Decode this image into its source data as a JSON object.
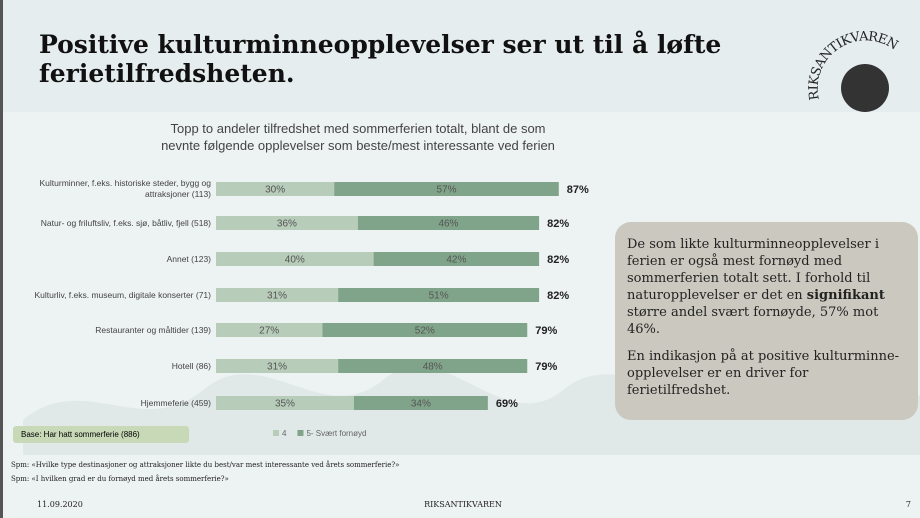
{
  "slide": {
    "title": "Positive kulturminneopplevelser ser ut til å løfte ferietilfredsheten.",
    "logo": "RIKSANTIKVAREN",
    "note": {
      "p1": [
        "De som likte kulturminneopplevelser i ferien er også mest fornøyd med sommerferien totalt sett. I forhold til naturopplevelser er det en ",
        "signifikant",
        " større andel svært fornøyde, 57% mot 46%."
      ],
      "p2": "En indikasjon på at positive kulturminne-opplevelser er en driver for ferietilfredshet."
    },
    "base": "Base: Har hatt sommerferie (886)",
    "questions": [
      "Spm: «Hvilke type destinasjoner og attraksjoner likte du best/var mest interessante ved årets sommerferie?»",
      "Spm: «I hvilken grad er du fornøyd med årets sommerferie?»"
    ],
    "date": "11.09.2020",
    "footer": "RIKSANTIKVAREN",
    "page": "7"
  },
  "chart_data": {
    "type": "stacked_bar_horizontal",
    "title": "Topp to andeler tilfredshet med sommerferien totalt, blant de som nevnte følgende opplevelser som beste/mest interessante ved ferien",
    "categories": [
      "Kulturminner, f.eks. historiske steder, bygg og attraksjoner (113)",
      "Natur- og friluftsliv, f.eks. sjø, båtliv, fjell (518)",
      "Annet (123)",
      "Kulturliv, f.eks. museum, digitale konserter (71)",
      "Restauranter og måltider (139)",
      "Hotell (86)",
      "Hjemmeferie (459)"
    ],
    "series": [
      {
        "name": "4",
        "color": "#b7ccb9",
        "values": [
          30,
          36,
          40,
          31,
          27,
          31,
          35
        ],
        "value_labels": [
          "30%",
          "36%",
          "40%",
          "31%",
          "27%",
          "31%",
          "35%"
        ]
      },
      {
        "name": "5- Svært fornøyd",
        "color": "#80a489",
        "values": [
          57,
          46,
          42,
          51,
          52,
          48,
          34
        ],
        "value_labels": [
          "57%",
          "46%",
          "42%",
          "51%",
          "52%",
          "48%",
          "34%"
        ]
      }
    ],
    "total_labels": [
      "87%",
      "82%",
      "82%",
      "82%",
      "79%",
      "79%",
      "69%"
    ],
    "xlim": [
      0,
      100
    ]
  }
}
